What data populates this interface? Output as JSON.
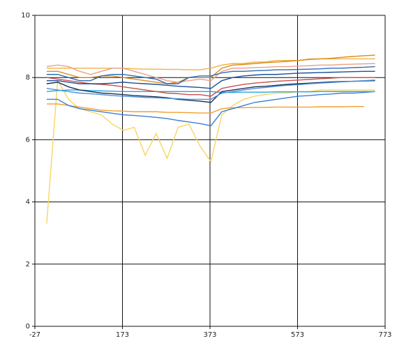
{
  "chart_data": {
    "type": "line",
    "x": [
      0,
      25,
      50,
      75,
      100,
      125,
      150,
      175,
      200,
      225,
      250,
      275,
      300,
      325,
      350,
      375,
      400,
      425,
      450,
      475,
      500,
      525,
      550,
      575,
      600,
      625,
      650,
      675,
      700,
      725,
      750
    ],
    "xlim": [
      -27,
      773
    ],
    "xticks": [
      -27,
      173,
      373,
      573,
      773
    ],
    "ylim": [
      0,
      10
    ],
    "yticks": [
      0,
      2,
      4,
      6,
      8,
      10
    ],
    "grid": true,
    "series": [
      {
        "color": "#f7d55f",
        "values": [
          3.3,
          7.9,
          7.3,
          7.0,
          6.9,
          6.8,
          6.5,
          6.3,
          6.4,
          5.5,
          6.2,
          5.4,
          6.4,
          6.5,
          5.8,
          5.3,
          6.8,
          7.1,
          7.3,
          7.4,
          7.45,
          7.5,
          7.5,
          7.55,
          7.55,
          7.6,
          7.6,
          7.6,
          7.6,
          7.6,
          7.6
        ]
      },
      {
        "color": "#f5b041",
        "values": [
          8.3,
          8.3,
          8.3,
          8.3,
          8.3,
          8.3,
          8.3,
          8.3,
          8.28,
          8.27,
          8.27,
          8.26,
          8.26,
          8.25,
          8.25,
          8.3,
          8.4,
          8.45,
          8.45,
          8.5,
          8.5,
          8.55,
          8.55,
          8.55,
          8.6,
          8.6,
          8.6,
          8.6,
          8.6,
          8.6,
          8.6
        ]
      },
      {
        "color": "#d98b1c",
        "values": [
          8.2,
          8.2,
          8.1,
          8.0,
          8.0,
          8.05,
          8.05,
          8.0,
          7.95,
          7.9,
          7.85,
          7.8,
          7.85,
          8.0,
          8.0,
          8.0,
          8.3,
          8.4,
          8.42,
          8.45,
          8.48,
          8.5,
          8.52,
          8.55,
          8.58,
          8.6,
          8.62,
          8.65,
          8.68,
          8.7,
          8.72
        ]
      },
      {
        "color": "#f0a030",
        "values": [
          7.15,
          7.15,
          7.1,
          7.05,
          7.0,
          6.95,
          6.93,
          6.92,
          6.9,
          6.9,
          6.9,
          6.88,
          6.88,
          6.87,
          6.86,
          6.86,
          7.0,
          7.03,
          7.03,
          7.04,
          7.04,
          7.05,
          7.05,
          7.05,
          7.05,
          7.06,
          7.06,
          7.06,
          7.07,
          7.07,
          null
        ]
      },
      {
        "color": "#3a7fd5",
        "values": [
          7.3,
          7.3,
          7.1,
          7.0,
          6.95,
          6.9,
          6.85,
          6.8,
          6.78,
          6.75,
          6.72,
          6.68,
          6.62,
          6.57,
          6.52,
          6.45,
          6.9,
          7.0,
          7.1,
          7.2,
          7.25,
          7.3,
          7.35,
          7.4,
          7.42,
          7.45,
          7.47,
          7.5,
          7.5,
          7.52,
          7.55
        ]
      },
      {
        "color": "#27a4e0",
        "values": [
          7.55,
          7.58,
          7.6,
          7.6,
          7.58,
          7.57,
          7.56,
          7.55,
          7.55,
          7.55,
          7.55,
          7.55,
          7.55,
          7.55,
          7.55,
          7.55,
          7.52,
          7.52,
          7.53,
          7.53,
          7.53,
          7.54,
          7.54,
          7.54,
          7.54,
          7.55,
          7.55,
          7.55,
          7.55,
          7.55,
          7.55
        ]
      },
      {
        "color": "#1b2f55",
        "values": [
          7.8,
          7.85,
          7.7,
          7.6,
          7.55,
          7.5,
          7.48,
          7.45,
          7.42,
          7.4,
          7.38,
          7.35,
          7.3,
          7.27,
          7.24,
          7.2,
          7.55,
          7.6,
          7.65,
          7.7,
          7.72,
          7.75,
          7.78,
          7.8,
          7.82,
          7.84,
          7.86,
          7.87,
          7.88,
          7.89,
          7.9
        ]
      },
      {
        "color": "#e8a08a",
        "values": [
          8.35,
          8.4,
          8.35,
          8.2,
          8.1,
          8.2,
          8.3,
          8.3,
          8.2,
          8.1,
          8.0,
          7.9,
          7.85,
          7.9,
          7.95,
          7.9,
          8.2,
          8.3,
          8.3,
          8.32,
          8.33,
          8.35,
          8.35,
          8.37,
          8.38,
          8.4,
          8.4,
          8.42,
          8.43,
          8.44,
          8.45
        ]
      },
      {
        "color": "#2e6db5",
        "values": [
          8.1,
          8.1,
          8.0,
          7.9,
          7.9,
          8.05,
          8.1,
          8.1,
          8.05,
          8.0,
          7.95,
          7.8,
          7.8,
          8.0,
          8.05,
          8.05,
          8.15,
          8.2,
          8.2,
          8.22,
          8.23,
          8.25,
          8.25,
          8.26,
          8.27,
          8.28,
          8.3,
          8.3,
          8.32,
          8.33,
          8.35
        ]
      },
      {
        "color": "#c9504a",
        "values": [
          8.0,
          7.95,
          7.9,
          7.85,
          7.8,
          7.78,
          7.75,
          7.7,
          7.65,
          7.6,
          7.55,
          7.5,
          7.48,
          7.45,
          7.45,
          7.4,
          7.65,
          7.72,
          7.78,
          7.82,
          7.85,
          7.88,
          7.9,
          7.92,
          7.94,
          7.96,
          7.98,
          8.0,
          8.0,
          8.0,
          8.0
        ]
      },
      {
        "color": "#1f4e9a",
        "values": [
          7.9,
          7.9,
          7.85,
          7.8,
          7.8,
          7.8,
          7.82,
          7.85,
          7.82,
          7.8,
          7.78,
          7.75,
          7.72,
          7.7,
          7.68,
          7.65,
          7.9,
          8.0,
          8.05,
          8.08,
          8.1,
          8.1,
          8.12,
          8.14,
          8.15,
          8.16,
          8.17,
          8.18,
          8.19,
          8.2,
          8.2
        ]
      },
      {
        "color": "#4a90d9",
        "values": [
          7.65,
          7.6,
          7.55,
          7.5,
          7.48,
          7.45,
          7.42,
          7.4,
          7.38,
          7.36,
          7.35,
          7.33,
          7.32,
          7.3,
          7.3,
          7.3,
          7.5,
          7.55,
          7.6,
          7.65,
          7.68,
          7.72,
          7.75,
          7.77,
          7.8,
          7.82,
          7.84,
          7.86,
          7.88,
          7.9,
          7.92
        ]
      }
    ]
  }
}
